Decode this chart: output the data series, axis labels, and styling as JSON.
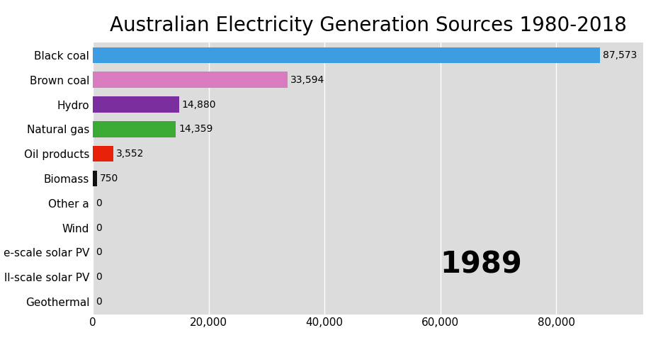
{
  "title": "Australian Electricity Generation Sources 1980-2018",
  "categories": [
    "Black coal",
    "Brown coal",
    "Hydro",
    "Natural gas",
    "Oil products",
    "Biomass",
    "Other a",
    "Wind",
    "e-scale solar PV",
    "ll-scale solar PV",
    "Geothermal"
  ],
  "values": [
    87573,
    33594,
    14880,
    14359,
    3552,
    750,
    0,
    0,
    0,
    0,
    0
  ],
  "bar_colors": [
    "#3c9de0",
    "#d87bbf",
    "#7b2f9e",
    "#3aaa35",
    "#e8220a",
    "#111111",
    "#dddddd",
    "#dddddd",
    "#dddddd",
    "#dddddd",
    "#dddddd"
  ],
  "value_labels": [
    "87,573",
    "33,594",
    "14,880",
    "14,359",
    "3,552",
    "750",
    "0",
    "0",
    "0",
    "0",
    "0"
  ],
  "year_annotation": "1989",
  "background_color": "#dcdcdc",
  "plot_bg_color": "#dcdcdc",
  "outer_bg_color": "#ffffff",
  "xlim": [
    0,
    95000
  ],
  "title_fontsize": 20,
  "tick_fontsize": 11,
  "annotation_fontsize": 30
}
